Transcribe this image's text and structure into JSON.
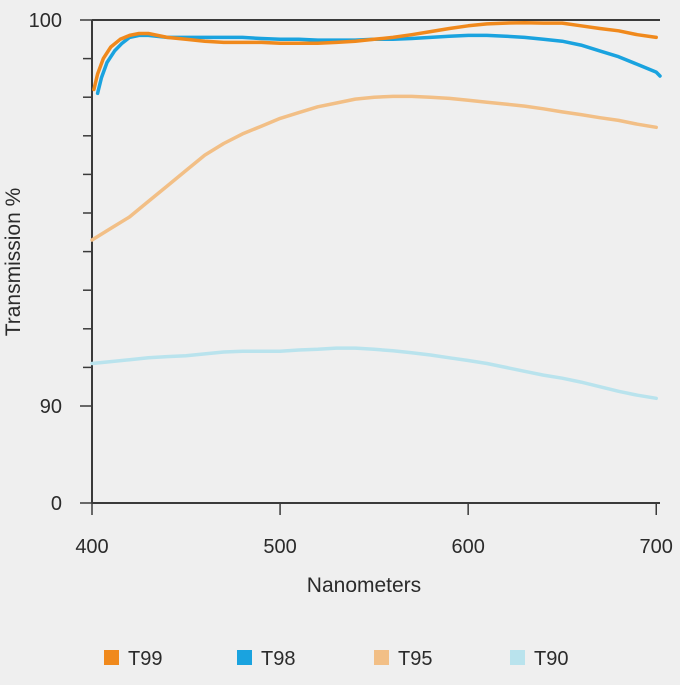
{
  "chart_data": {
    "type": "line",
    "xlabel": "Nanometers",
    "ylabel": "Transmission %",
    "x_ticks": [
      400,
      500,
      600,
      700
    ],
    "y_tick_labels": [
      "100",
      "90",
      "0"
    ],
    "xlim": [
      400,
      702
    ],
    "ylim_note": "broken axis: 0 at bottom, 90 and 100 labeled; minor ticks every 1%",
    "legend_position": "bottom",
    "grid": false,
    "series": [
      {
        "name": "T99",
        "color": "#f0891c",
        "x": [
          401,
          403,
          406,
          410,
          415,
          420,
          425,
          430,
          440,
          450,
          460,
          470,
          480,
          490,
          500,
          510,
          520,
          530,
          540,
          550,
          560,
          570,
          580,
          590,
          600,
          610,
          620,
          630,
          640,
          650,
          660,
          670,
          680,
          690,
          700
        ],
        "y": [
          98.2,
          98.6,
          99.0,
          99.3,
          99.5,
          99.6,
          99.65,
          99.65,
          99.55,
          99.5,
          99.45,
          99.42,
          99.42,
          99.42,
          99.4,
          99.4,
          99.4,
          99.42,
          99.45,
          99.5,
          99.55,
          99.62,
          99.7,
          99.78,
          99.85,
          99.9,
          99.92,
          99.93,
          99.92,
          99.92,
          99.85,
          99.78,
          99.72,
          99.62,
          99.55
        ]
      },
      {
        "name": "T98",
        "color": "#1aa3df",
        "x": [
          403,
          405,
          408,
          412,
          416,
          420,
          425,
          430,
          440,
          450,
          460,
          470,
          480,
          490,
          500,
          510,
          520,
          530,
          540,
          550,
          560,
          570,
          580,
          590,
          600,
          610,
          620,
          630,
          640,
          650,
          660,
          670,
          680,
          690,
          700,
          702
        ],
        "y": [
          98.1,
          98.5,
          98.9,
          99.2,
          99.4,
          99.55,
          99.6,
          99.6,
          99.55,
          99.55,
          99.55,
          99.55,
          99.55,
          99.52,
          99.5,
          99.5,
          99.48,
          99.48,
          99.48,
          99.5,
          99.5,
          99.52,
          99.55,
          99.58,
          99.6,
          99.6,
          99.58,
          99.55,
          99.5,
          99.45,
          99.35,
          99.2,
          99.05,
          98.85,
          98.65,
          98.55
        ]
      },
      {
        "name": "T95",
        "color": "#f2bf86",
        "x": [
          400,
          410,
          420,
          430,
          440,
          450,
          460,
          470,
          480,
          490,
          500,
          510,
          520,
          530,
          540,
          550,
          560,
          570,
          580,
          590,
          600,
          610,
          620,
          630,
          640,
          650,
          660,
          670,
          680,
          690,
          700
        ],
        "y": [
          94.3,
          94.6,
          94.9,
          95.3,
          95.7,
          96.1,
          96.5,
          96.8,
          97.05,
          97.25,
          97.45,
          97.6,
          97.75,
          97.85,
          97.95,
          98.0,
          98.02,
          98.02,
          98.0,
          97.97,
          97.92,
          97.87,
          97.82,
          97.77,
          97.7,
          97.62,
          97.55,
          97.47,
          97.4,
          97.3,
          97.22
        ]
      },
      {
        "name": "T90",
        "color": "#b9e3ed",
        "x": [
          400,
          410,
          420,
          430,
          440,
          450,
          460,
          470,
          480,
          490,
          500,
          510,
          520,
          530,
          540,
          550,
          560,
          570,
          580,
          590,
          600,
          610,
          620,
          630,
          640,
          650,
          660,
          670,
          680,
          690,
          700
        ],
        "y": [
          91.1,
          91.15,
          91.2,
          91.25,
          91.28,
          91.3,
          91.35,
          91.4,
          91.42,
          91.42,
          91.42,
          91.45,
          91.47,
          91.5,
          91.5,
          91.47,
          91.43,
          91.38,
          91.32,
          91.25,
          91.18,
          91.1,
          91.0,
          90.9,
          90.8,
          90.72,
          90.62,
          90.5,
          90.38,
          90.28,
          90.2
        ]
      }
    ]
  }
}
